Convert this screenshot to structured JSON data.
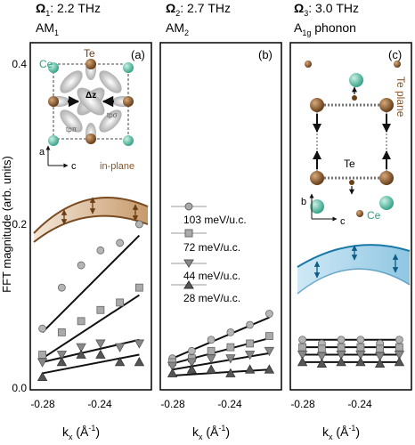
{
  "figure": {
    "ylabel": "FFT magnitude (arb. units)",
    "xlabel": "k",
    "xlabel_sub": "x",
    "xlabel_unit_open": " (Å",
    "xlabel_unit_exp": "-1",
    "xlabel_unit_close": ")",
    "yticks": [
      "0.4",
      "0.2",
      "0.0"
    ],
    "xticks": [
      "-0.28",
      "-0.24"
    ],
    "legend": [
      {
        "label": "103 meV/u.c.",
        "marker": "circle"
      },
      {
        "label": "72 meV/u.c.",
        "marker": "square"
      },
      {
        "label": "44 meV/u.c.",
        "marker": "triangle-down"
      },
      {
        "label": "28 meV/u.c.",
        "marker": "triangle-up"
      }
    ],
    "colors": {
      "am1": "#8a5524",
      "a1g": "#1a78a8",
      "ce": "#2e9e83",
      "te": "#7a4a20",
      "marker_dark": "#555555",
      "marker_light": "#9a9a9a"
    }
  },
  "panels": [
    {
      "omega_symbol": "Ω",
      "omega_sub": "1",
      "freq": ": 2.2 THz",
      "mode_main": "AM",
      "mode_sub": "1",
      "letter": "(a)",
      "inset": {
        "ce_label": "Ce",
        "te_label": "Te",
        "dz_label": "Δz",
        "tpp_label": "tpπ",
        "tps_label": "tpσ",
        "axis1": "a",
        "axis2": "c",
        "caption": "in-plane"
      }
    },
    {
      "omega_symbol": "Ω",
      "omega_sub": "2",
      "freq": ": 2.7 THz",
      "mode_main": "AM",
      "mode_sub": "2",
      "letter": "(b)"
    },
    {
      "omega_symbol": "Ω",
      "omega_sub": "3",
      "freq": ": 3.0 THz",
      "mode_main": "A",
      "mode_sub": "1g",
      "mode_suffix": " phonon",
      "letter": "(c)",
      "inset": {
        "te_plane": "Te plane",
        "te_label": "Te",
        "ce_label": "Ce",
        "axis1": "b",
        "axis2": "c"
      }
    }
  ],
  "chart_data": [
    {
      "type": "scatter",
      "panel": "a",
      "title": "Ω1: 2.2 THz AM1",
      "xlim": [
        -0.29,
        -0.19
      ],
      "ylim": [
        0,
        0.43
      ],
      "x": [
        -0.28,
        -0.264,
        -0.248,
        -0.232,
        -0.216,
        -0.2
      ],
      "series": [
        {
          "name": "103 meV/u.c.",
          "marker": "circle",
          "values": [
            0.075,
            0.13,
            0.16,
            0.18,
            0.19,
            0.215
          ]
        },
        {
          "name": "72 meV/u.c.",
          "marker": "square",
          "values": [
            0.04,
            0.07,
            0.085,
            0.1,
            0.11,
            0.13
          ]
        },
        {
          "name": "44 meV/u.c.",
          "marker": "triangle-down",
          "values": [
            0.03,
            0.04,
            0.05,
            0.055,
            0.05,
            0.055
          ]
        },
        {
          "name": "28 meV/u.c.",
          "marker": "triangle-up",
          "values": [
            0.01,
            0.03,
            0.04,
            0.04,
            0.03,
            0.03
          ]
        }
      ],
      "fits": [
        [
          0.07,
          0.2
        ],
        [
          0.035,
          0.12
        ],
        [
          0.03,
          0.06
        ],
        [
          0.015,
          0.04
        ]
      ]
    },
    {
      "type": "scatter",
      "panel": "b",
      "title": "Ω2: 2.7 THz AM2",
      "xlim": [
        -0.29,
        -0.19
      ],
      "ylim": [
        0,
        0.43
      ],
      "x": [
        -0.28,
        -0.264,
        -0.248,
        -0.232,
        -0.216,
        -0.2
      ],
      "series": [
        {
          "name": "103 meV/u.c.",
          "marker": "circle",
          "values": [
            0.035,
            0.045,
            0.06,
            0.07,
            0.08,
            0.095
          ]
        },
        {
          "name": "72 meV/u.c.",
          "marker": "square",
          "values": [
            0.03,
            0.035,
            0.045,
            0.05,
            0.055,
            0.065
          ]
        },
        {
          "name": "44 meV/u.c.",
          "marker": "triangle-down",
          "values": [
            0.025,
            0.03,
            0.035,
            0.035,
            0.04,
            0.045
          ]
        },
        {
          "name": "28 meV/u.c.",
          "marker": "triangle-up",
          "values": [
            0.015,
            0.02,
            0.02,
            0.015,
            0.02,
            0.02
          ]
        }
      ],
      "fits": [
        [
          0.035,
          0.09
        ],
        [
          0.028,
          0.062
        ],
        [
          0.02,
          0.042
        ],
        [
          0.012,
          0.02
        ]
      ]
    },
    {
      "type": "scatter",
      "panel": "c",
      "title": "Ω3: 3.0 THz A1g phonon",
      "xlim": [
        -0.29,
        -0.19
      ],
      "ylim": [
        0,
        0.43
      ],
      "x": [
        -0.28,
        -0.264,
        -0.248,
        -0.232,
        -0.216,
        -0.2
      ],
      "series": [
        {
          "name": "103 meV/u.c.",
          "marker": "circle",
          "values": [
            0.06,
            0.055,
            0.06,
            0.06,
            0.055,
            0.06
          ]
        },
        {
          "name": "72 meV/u.c.",
          "marker": "square",
          "values": [
            0.05,
            0.048,
            0.05,
            0.05,
            0.048,
            0.05
          ]
        },
        {
          "name": "44 meV/u.c.",
          "marker": "triangle-down",
          "values": [
            0.04,
            0.038,
            0.04,
            0.04,
            0.038,
            0.04
          ]
        },
        {
          "name": "28 meV/u.c.",
          "marker": "triangle-up",
          "values": [
            0.03,
            0.028,
            0.03,
            0.03,
            0.028,
            0.03
          ]
        }
      ],
      "fits": [
        [
          0.06,
          0.06
        ],
        [
          0.05,
          0.05
        ],
        [
          0.04,
          0.04
        ],
        [
          0.03,
          0.03
        ]
      ]
    }
  ]
}
